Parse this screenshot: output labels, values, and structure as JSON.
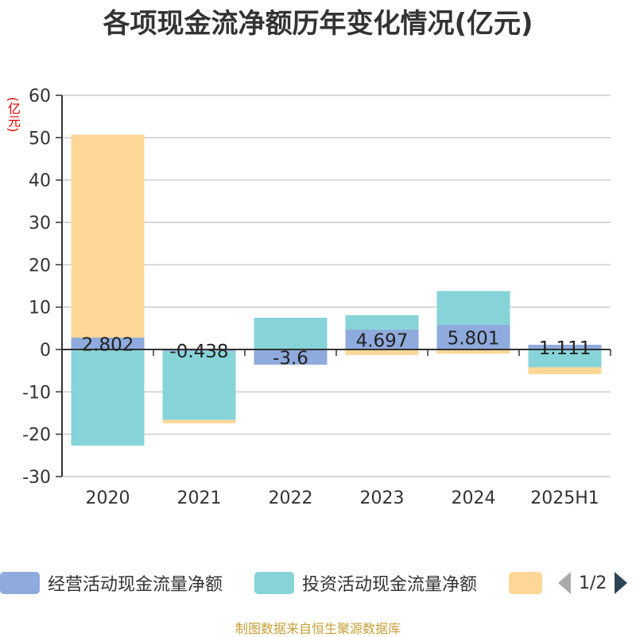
{
  "title": "各项现金流净额历年变化情况(亿元)",
  "unit_label": "(亿元)",
  "footer": "制图数据来自恒生聚源数据库",
  "pager": {
    "text": "1/2"
  },
  "legend": [
    {
      "label": "经营活动现金流量净额",
      "color": "#8faadc"
    },
    {
      "label": "投资活动现金流量净额",
      "color": "#86d4d8"
    },
    {
      "label": "",
      "color": "#fed797"
    }
  ],
  "chart_data": {
    "type": "bar",
    "stacked": true,
    "categories": [
      "2020",
      "2021",
      "2022",
      "2023",
      "2024",
      "2025H1"
    ],
    "series": [
      {
        "name": "经营活动现金流量净额",
        "color": "#8faadc",
        "values": [
          2.802,
          -0.438,
          -3.6,
          4.697,
          5.801,
          1.111
        ],
        "labels": [
          "2.802",
          "-0.438",
          "-3.6",
          "4.697",
          "5.801",
          "1.111"
        ]
      },
      {
        "name": "投资活动现金流量净额",
        "color": "#86d4d8",
        "values": [
          -22.7,
          -16.2,
          7.5,
          3.4,
          8.0,
          -4.2
        ]
      },
      {
        "color": "#fed797",
        "values": [
          47.9,
          -0.8,
          0,
          -1.3,
          -1.0,
          -1.6
        ]
      }
    ],
    "ylim": [
      -30,
      60
    ],
    "yticks": [
      60,
      50,
      40,
      30,
      20,
      10,
      0,
      -10,
      -20,
      -30
    ],
    "grid": true,
    "legend_position": "bottom"
  }
}
